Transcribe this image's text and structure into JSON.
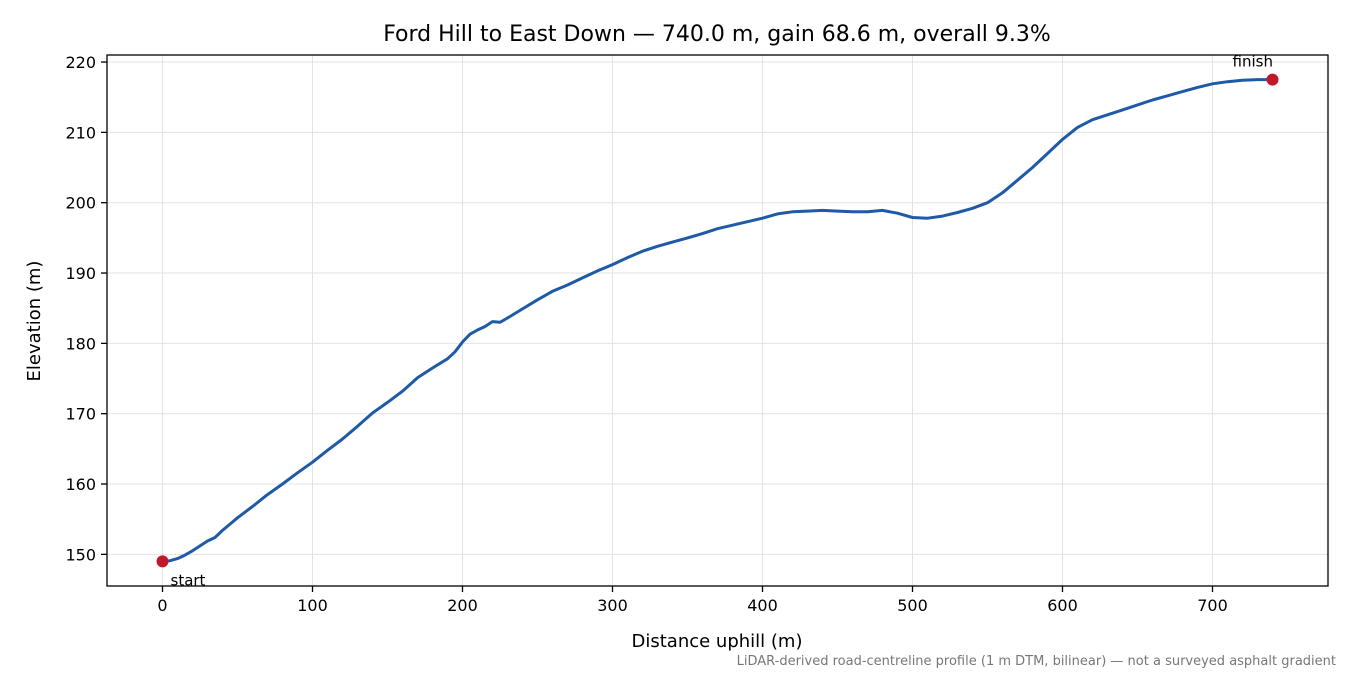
{
  "chart_data": {
    "type": "line",
    "title": "Ford Hill to East Down — 740.0 m, gain 68.6 m, overall 9.3%",
    "xlabel": "Distance uphill (m)",
    "ylabel": "Elevation (m)",
    "xlim": [
      -37,
      777
    ],
    "ylim": [
      145.5,
      221
    ],
    "x_ticks": [
      0,
      100,
      200,
      300,
      400,
      500,
      600,
      700
    ],
    "y_ticks": [
      150,
      160,
      170,
      180,
      190,
      200,
      210,
      220
    ],
    "grid": true,
    "line_color": "#1f5aa6",
    "marker_color": "#c1192c",
    "series": [
      {
        "x": [
          0,
          5,
          10,
          15,
          20,
          25,
          30,
          35,
          40,
          45,
          50,
          60,
          70,
          80,
          90,
          100,
          110,
          120,
          130,
          140,
          150,
          160,
          170,
          180,
          190,
          195,
          200,
          205,
          210,
          215,
          220,
          225,
          230,
          240,
          250,
          260,
          270,
          280,
          290,
          300,
          310,
          320,
          330,
          340,
          350,
          360,
          370,
          380,
          390,
          400,
          410,
          420,
          430,
          440,
          450,
          460,
          470,
          480,
          490,
          500,
          510,
          520,
          530,
          540,
          550,
          560,
          570,
          580,
          590,
          600,
          610,
          620,
          630,
          640,
          650,
          660,
          670,
          680,
          690,
          700,
          710,
          720,
          730,
          740
        ],
        "y": [
          149.0,
          149.1,
          149.4,
          149.9,
          150.5,
          151.2,
          151.9,
          152.4,
          153.4,
          154.3,
          155.2,
          156.8,
          158.5,
          160.0,
          161.6,
          163.1,
          164.8,
          166.4,
          168.2,
          170.1,
          171.6,
          173.2,
          175.1,
          176.5,
          177.8,
          178.8,
          180.2,
          181.3,
          181.9,
          182.4,
          183.1,
          183.0,
          183.6,
          184.9,
          186.2,
          187.4,
          188.3,
          189.3,
          190.3,
          191.2,
          192.2,
          193.1,
          193.8,
          194.4,
          195.0,
          195.6,
          196.3,
          196.8,
          197.3,
          197.8,
          198.4,
          198.7,
          198.8,
          198.9,
          198.8,
          198.7,
          198.7,
          198.9,
          198.5,
          197.9,
          197.8,
          198.1,
          198.6,
          199.2,
          200.0,
          201.4,
          203.2,
          205.0,
          207.0,
          209.0,
          210.7,
          211.8,
          212.5,
          213.2,
          213.9,
          214.6,
          215.2,
          215.8,
          216.4,
          216.9,
          217.2,
          217.4,
          217.5,
          217.5
        ]
      }
    ],
    "points": [
      {
        "label": "start",
        "x": 0,
        "y": 149.0
      },
      {
        "label": "finish",
        "x": 740,
        "y": 217.5
      }
    ],
    "footnote": "LiDAR-derived road-centreline profile (1 m DTM, bilinear) — not a surveyed asphalt gradient"
  }
}
